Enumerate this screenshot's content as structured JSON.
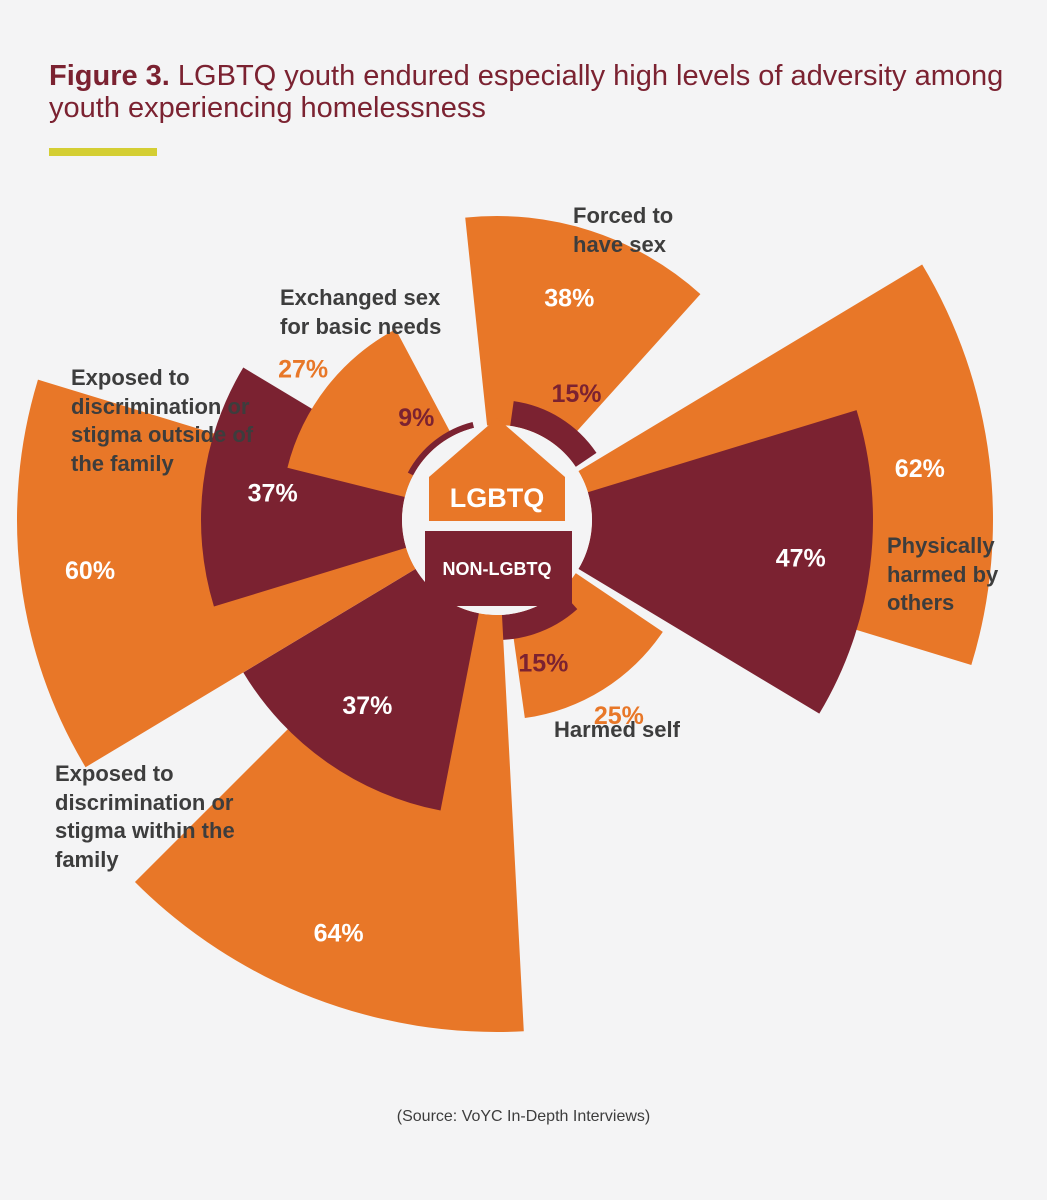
{
  "figure": {
    "label": "Figure 3.",
    "title": "LGBTQ youth endured especially high levels of adversity among youth experiencing homelessness",
    "source": "(Source: VoYC In-Depth Interviews)"
  },
  "colors": {
    "lgbtq": "#e87728",
    "non_lgbtq": "#7b2231",
    "accent": "#d4ce33",
    "background": "#f4f4f5"
  },
  "chart_data": {
    "type": "polar-area",
    "center_labels": {
      "top": "LGBTQ",
      "bottom": "NON-LGBTQ"
    },
    "categories": [
      "Forced to have sex",
      "Physically harmed by others",
      "Harmed self",
      "Exposed to discrimination or stigma within the family",
      "Exposed to discrimination or stigma outside of the family",
      "Exchanged sex for basic needs"
    ],
    "series": [
      {
        "name": "LGBTQ",
        "values": [
          38,
          62,
          25,
          64,
          60,
          27
        ]
      },
      {
        "name": "NON-LGBTQ",
        "values": [
          15,
          47,
          15,
          37,
          37,
          9
        ]
      }
    ],
    "unit": "%"
  }
}
